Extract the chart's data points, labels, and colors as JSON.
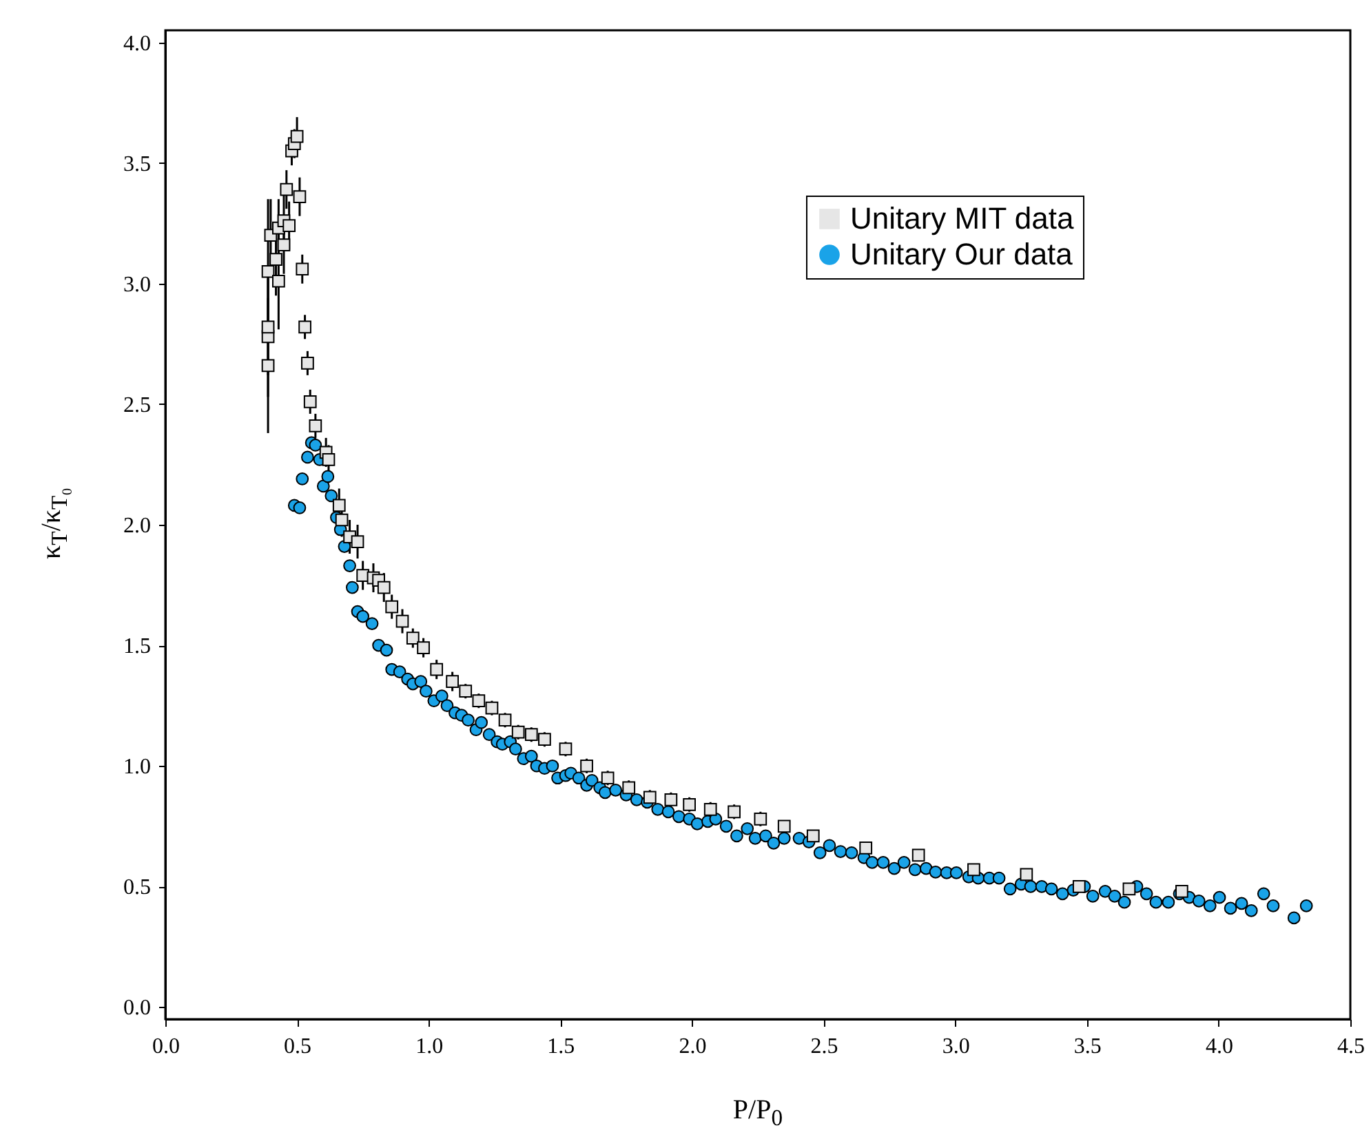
{
  "chart_data": {
    "type": "scatter",
    "xlabel": "P/P$_{0}$",
    "ylabel": "κ$_{T}$/κ$_{T₀}$",
    "legend": "top right",
    "grid": false,
    "xlim": [
      0,
      4.5
    ],
    "ylim": [
      -0.05,
      4.05
    ],
    "xticks": [
      {
        "value": 0,
        "label": "0.0"
      },
      0.5,
      {
        "value": 1,
        "label": "1.0"
      },
      1.5,
      {
        "value": 2,
        "label": "2.0"
      },
      2.5,
      {
        "value": 3,
        "label": "3.0"
      },
      3.5,
      {
        "value": 4,
        "label": "4.0"
      },
      4.5
    ],
    "yticks": [
      {
        "value": 0,
        "label": "0.0"
      },
      0.5,
      {
        "value": 1,
        "label": "1.0"
      },
      1.5,
      {
        "value": 2,
        "label": "2.0"
      },
      2.5,
      {
        "value": 3,
        "label": "3.0"
      },
      3.5,
      {
        "value": 4,
        "label": "4.0"
      }
    ],
    "series": [
      {
        "name": "Unitary MIT data",
        "color": "#e6e6e6",
        "marker": "square",
        "x": [
          0.39,
          0.39,
          0.39,
          0.39,
          0.42,
          0.43,
          0.4,
          0.43,
          0.45,
          0.45,
          0.47,
          0.46,
          0.48,
          0.49,
          0.5,
          0.51,
          0.52,
          0.53,
          0.54,
          0.55,
          0.57,
          0.61,
          0.62,
          0.66,
          0.67,
          0.7,
          0.73,
          0.75,
          0.79,
          0.81,
          0.83,
          0.86,
          0.9,
          0.94,
          0.98,
          1.03,
          1.09,
          1.14,
          1.19,
          1.24,
          1.29,
          1.34,
          1.39,
          1.44,
          1.52,
          1.6,
          1.68,
          1.76,
          1.84,
          1.92,
          1.99,
          2.07,
          2.16,
          2.26,
          2.35,
          2.46,
          2.66,
          2.86,
          3.07,
          3.27,
          3.47,
          3.66,
          3.86
        ],
        "values": [
          2.66,
          2.78,
          2.82,
          3.05,
          3.1,
          3.01,
          3.2,
          3.23,
          3.26,
          3.16,
          3.24,
          3.39,
          3.55,
          3.58,
          3.61,
          3.36,
          3.06,
          2.82,
          2.67,
          2.51,
          2.41,
          2.3,
          2.27,
          2.08,
          2.02,
          1.95,
          1.93,
          1.79,
          1.78,
          1.77,
          1.74,
          1.66,
          1.6,
          1.53,
          1.49,
          1.4,
          1.35,
          1.31,
          1.27,
          1.24,
          1.19,
          1.14,
          1.13,
          1.11,
          1.07,
          1.0,
          0.95,
          0.91,
          0.87,
          0.86,
          0.84,
          0.82,
          0.81,
          0.78,
          0.75,
          0.71,
          0.66,
          0.63,
          0.57,
          0.55,
          0.5,
          0.49,
          0.48
        ],
        "errors": [
          0.28,
          0.25,
          0.2,
          0.3,
          0.15,
          0.2,
          0.15,
          0.12,
          0.12,
          0.12,
          0.1,
          0.08,
          0.06,
          0.06,
          0.08,
          0.08,
          0.06,
          0.05,
          0.05,
          0.05,
          0.05,
          0.06,
          0.06,
          0.07,
          0.07,
          0.07,
          0.07,
          0.06,
          0.06,
          null,
          0.06,
          0.05,
          0.05,
          0.04,
          0.04,
          0.04,
          0.04,
          0.03,
          0.03,
          0.03,
          0.03,
          0.03,
          0.03,
          0.03,
          0.03,
          0.03,
          0.03,
          0.03,
          0.03,
          0.03,
          0.03,
          0.03,
          0.03,
          0.03,
          0.02,
          0.02,
          0.02,
          0.02,
          0.02,
          0.02,
          0.02,
          0.02,
          0.02
        ]
      },
      {
        "name": "Unitary Our data",
        "color": "#1aa3e8",
        "marker": "circle",
        "x": [
          0.49,
          0.51,
          0.52,
          0.54,
          0.555,
          0.57,
          0.586,
          0.6,
          0.617,
          0.63,
          0.65,
          0.665,
          0.68,
          0.7,
          0.71,
          0.73,
          0.75,
          0.785,
          0.81,
          0.84,
          0.86,
          0.89,
          0.92,
          0.94,
          0.97,
          0.99,
          1.02,
          1.05,
          1.07,
          1.1,
          1.125,
          1.15,
          1.18,
          1.2,
          1.23,
          1.26,
          1.28,
          1.31,
          1.33,
          1.36,
          1.39,
          1.41,
          1.44,
          1.47,
          1.49,
          1.52,
          1.54,
          1.57,
          1.6,
          1.62,
          1.65,
          1.67,
          1.71,
          1.75,
          1.79,
          1.83,
          1.87,
          1.91,
          1.95,
          1.99,
          2.02,
          2.06,
          2.09,
          2.13,
          2.17,
          2.21,
          2.24,
          2.28,
          2.31,
          2.35,
          2.407,
          2.444,
          2.486,
          2.522,
          2.564,
          2.606,
          2.653,
          2.684,
          2.726,
          2.768,
          2.805,
          2.847,
          2.889,
          2.925,
          2.967,
          3.004,
          3.051,
          3.087,
          3.129,
          3.166,
          3.208,
          3.25,
          3.286,
          3.328,
          3.365,
          3.407,
          3.448,
          3.49,
          3.522,
          3.569,
          3.605,
          3.642,
          3.689,
          3.726,
          3.762,
          3.809,
          3.851,
          3.888,
          3.925,
          3.967,
          4.003,
          4.045,
          4.087,
          4.124,
          4.171,
          4.207,
          4.286,
          4.333
        ],
        "values": [
          2.08,
          2.07,
          2.19,
          2.28,
          2.34,
          2.33,
          2.27,
          2.16,
          2.2,
          2.12,
          2.03,
          1.98,
          1.91,
          1.83,
          1.74,
          1.64,
          1.62,
          1.59,
          1.5,
          1.48,
          1.4,
          1.39,
          1.36,
          1.34,
          1.35,
          1.31,
          1.27,
          1.29,
          1.25,
          1.22,
          1.21,
          1.19,
          1.15,
          1.18,
          1.13,
          1.1,
          1.09,
          1.1,
          1.07,
          1.03,
          1.04,
          1.0,
          0.99,
          1.0,
          0.95,
          0.96,
          0.97,
          0.95,
          0.92,
          0.94,
          0.91,
          0.89,
          0.9,
          0.88,
          0.86,
          0.85,
          0.82,
          0.81,
          0.79,
          0.78,
          0.76,
          0.77,
          0.78,
          0.75,
          0.71,
          0.74,
          0.7,
          0.71,
          0.68,
          0.7,
          0.7,
          0.685,
          0.64,
          0.67,
          0.645,
          0.64,
          0.62,
          0.6,
          0.6,
          0.575,
          0.6,
          0.57,
          0.575,
          0.56,
          0.557,
          0.557,
          0.54,
          0.535,
          0.535,
          0.535,
          0.49,
          0.51,
          0.5,
          0.5,
          0.49,
          0.47,
          0.485,
          0.5,
          0.46,
          0.48,
          0.46,
          0.435,
          0.5,
          0.47,
          0.435,
          0.435,
          0.47,
          0.455,
          0.44,
          0.42,
          0.455,
          0.41,
          0.43,
          0.4,
          0.47,
          0.42,
          0.37,
          0.42
        ]
      }
    ]
  }
}
